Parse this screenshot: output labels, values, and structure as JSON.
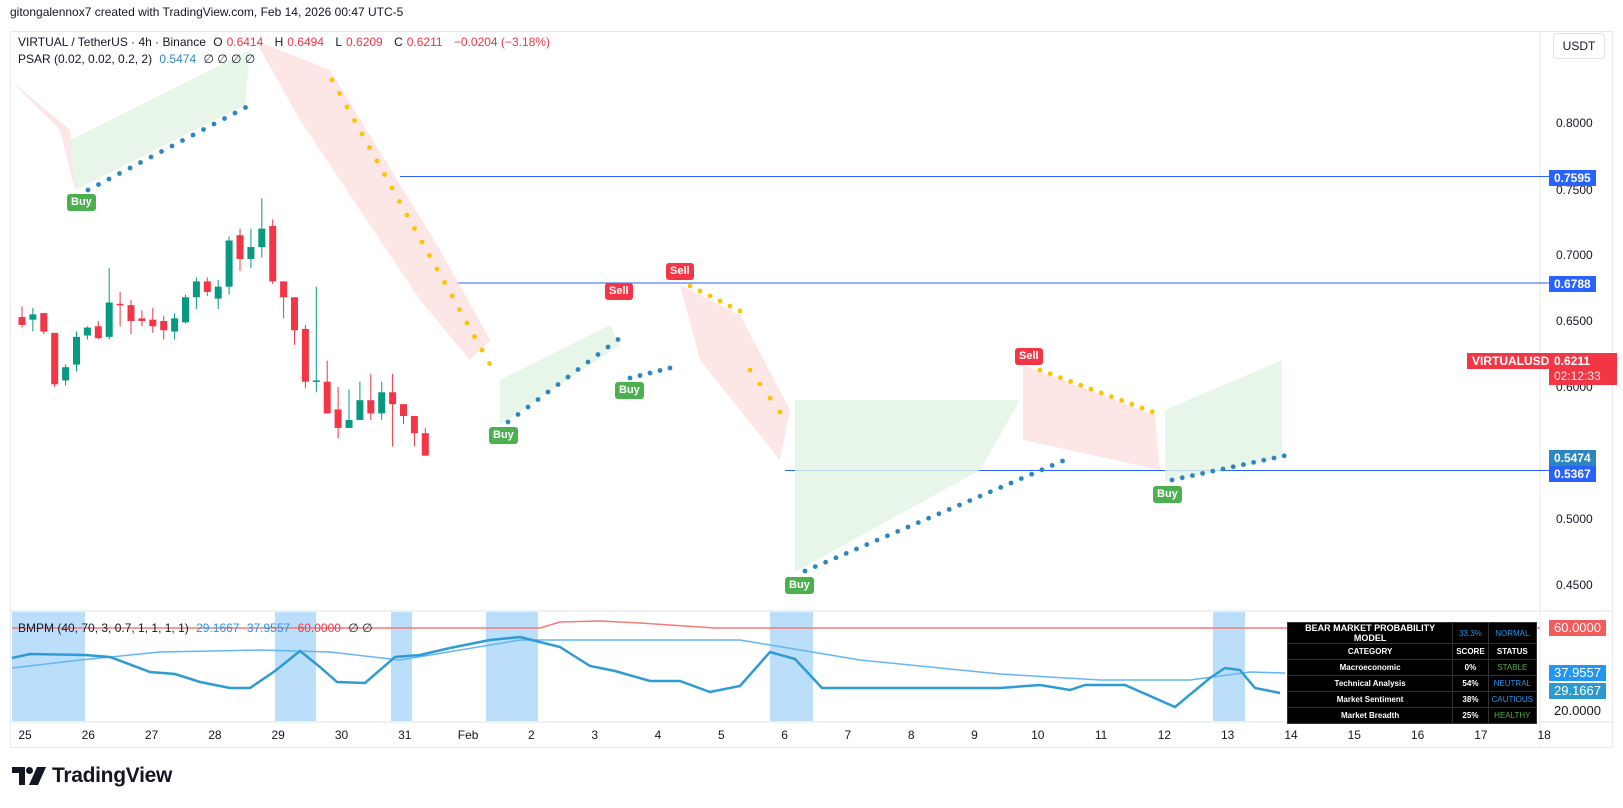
{
  "header": {
    "credit": "gitongalennox7 created with TradingView.com, Feb 14, 2026 00:47 UTC-5"
  },
  "legend": {
    "symbol": "VIRTUAL / TetherUS · 4h · Binance",
    "o_label": "O",
    "o": "0.6414",
    "h_label": "H",
    "h": "0.6494",
    "l_label": "L",
    "l": "0.6209",
    "c_label": "C",
    "c": "0.6211",
    "change": "−0.0204 (−3.18%)",
    "psar_name": "PSAR (0.02, 0.02, 0.2, 2)",
    "psar_value": "0.5474",
    "psar_extra": "∅  ∅  ∅  ∅",
    "bmpm_name": "BMPM (40, 70, 3, 0.7, 1, 1, 1, 1)",
    "bmpm_v1": "29.1667",
    "bmpm_v2": "37.9557",
    "bmpm_v3": "60.0000",
    "bmpm_extra": "∅  ∅"
  },
  "currency_button": "USDT",
  "price_axis": {
    "ticks": [
      "0.8000",
      "0.7500",
      "0.7000",
      "0.6500",
      "0.6000",
      "0.5000",
      "0.4500"
    ],
    "tags": {
      "level_1": "0.7595",
      "level_2": "0.6788",
      "current_symbol": "VIRTUALUSDT",
      "current_price": "0.6211",
      "countdown": "02:12:33",
      "psar": "0.5474",
      "level_3": "0.5367"
    }
  },
  "sub_axis": {
    "threshold": "60.0000",
    "v2": "37.9557",
    "v1": "29.1667",
    "tick": "20.0000"
  },
  "time_axis": [
    "25",
    "26",
    "27",
    "28",
    "29",
    "30",
    "31",
    "Feb",
    "2",
    "3",
    "4",
    "5",
    "6",
    "7",
    "8",
    "9",
    "10",
    "11",
    "12",
    "13",
    "14",
    "15",
    "16",
    "17",
    "18"
  ],
  "signals": [
    {
      "label": "Buy",
      "type": "buy"
    },
    {
      "label": "Sell",
      "type": "sell"
    },
    {
      "label": "Sell",
      "type": "sell"
    },
    {
      "label": "Buy",
      "type": "buy"
    },
    {
      "label": "Buy",
      "type": "buy"
    },
    {
      "label": "Sell",
      "type": "sell"
    },
    {
      "label": "Buy",
      "type": "buy"
    },
    {
      "label": "Buy",
      "type": "buy"
    }
  ],
  "bear_table": {
    "title": "BEAR MARKET PROBABILITY MODEL",
    "probability": "33.3%",
    "status": "NORMAL",
    "headers": [
      "CATEGORY",
      "SCORE",
      "STATUS"
    ],
    "rows": [
      {
        "category": "Macroeconomic",
        "score": "0%",
        "status": "STABLE"
      },
      {
        "category": "Technical Analysis",
        "score": "54%",
        "status": "NEUTRAL"
      },
      {
        "category": "Market Sentiment",
        "score": "38%",
        "status": "CAUTIOUS"
      },
      {
        "category": "Market Breadth",
        "score": "25%",
        "status": "HEALTHY"
      }
    ]
  },
  "colors": {
    "up": "#089981",
    "down": "#f23645",
    "psar_up": "#2e86c1",
    "psar_down": "#ffc400",
    "level_line": "#2962ff",
    "buy": "#4caf50",
    "sell": "#f23645"
  },
  "logo": "TradingView",
  "chart_data": {
    "type": "candlestick",
    "symbol": "VIRTUALUSDT",
    "interval": "4h",
    "horizontal_levels": [
      0.7595,
      0.6788,
      0.5367
    ],
    "last": {
      "open": 0.6414,
      "high": 0.6494,
      "low": 0.6209,
      "close": 0.6211
    },
    "ylim": [
      0.44,
      0.85
    ]
  }
}
